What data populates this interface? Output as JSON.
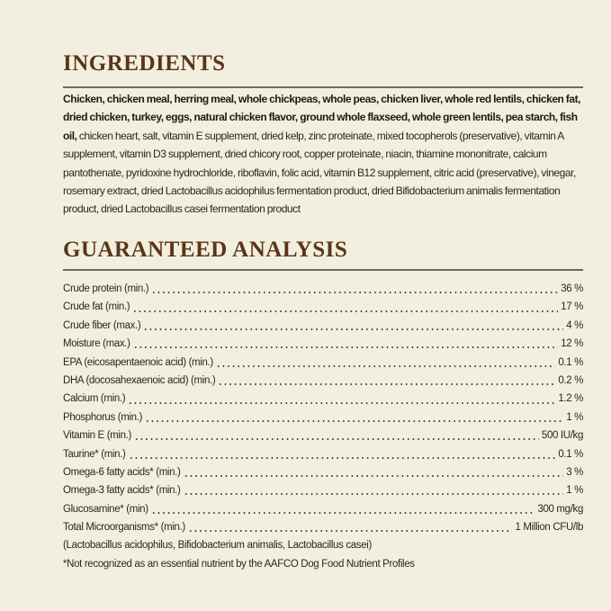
{
  "ingredients": {
    "title": "INGREDIENTS",
    "bold_text": "Chicken, chicken meal, herring meal, whole chickpeas, whole peas, chicken liver, whole red lentils, chicken fat, dried chicken, turkey, eggs, natural chicken flavor, ground whole flaxseed, whole green lentils, pea starch, fish oil,",
    "regular_text": " chicken heart, salt, vitamin E supplement, dried kelp, zinc proteinate, mixed tocopherols (preservative), vitamin A supplement, vitamin D3 supplement, dried chicory root, copper proteinate, niacin, thiamine mononitrate, calcium pantothenate, pyridoxine hydrochloride, riboflavin, folic acid, vitamin B12 supplement, citric acid (preservative), vinegar, rosemary extract, dried Lactobacillus acidophilus fermentation product, dried Bifidobacterium animalis fermentation product, dried Lactobacillus casei fermentation product"
  },
  "analysis": {
    "title": "GUARANTEED ANALYSIS",
    "rows": [
      {
        "label": "Crude protein (min.)",
        "value": "36 %"
      },
      {
        "label": "Crude fat (min.)",
        "value": "17 %"
      },
      {
        "label": "Crude fiber (max.)",
        "value": "4 %"
      },
      {
        "label": "Moisture (max.)",
        "value": "12 %"
      },
      {
        "label": "EPA (eicosapentaenoic acid) (min.)",
        "value": "0.1 %"
      },
      {
        "label": "DHA (docosahexaenoic acid) (min.)",
        "value": "0.2 %"
      },
      {
        "label": "Calcium (min.)",
        "value": "1.2 %"
      },
      {
        "label": "Phosphorus (min.)",
        "value": "1 %"
      },
      {
        "label": "Vitamin E (min.)",
        "value": "500 IU/kg"
      },
      {
        "label": "Taurine* (min.)",
        "value": "0.1 %"
      },
      {
        "label": "Omega-6 fatty acids* (min.)",
        "value": "3 %"
      },
      {
        "label": "Omega-3 fatty acids* (min.)",
        "value": "1 %"
      },
      {
        "label": "Glucosamine* (min)",
        "value": "300 mg/kg"
      },
      {
        "label": "Total Microorganisms* (min.)",
        "value": "1 Million CFU/lb"
      }
    ],
    "microorganisms_note": "(Lactobacillus acidophilus, Bifidobacterium animalis, Lactobacillus casei)",
    "footnote": "*Not recognized as an essential nutrient by the AAFCO Dog Food Nutrient Profiles"
  }
}
